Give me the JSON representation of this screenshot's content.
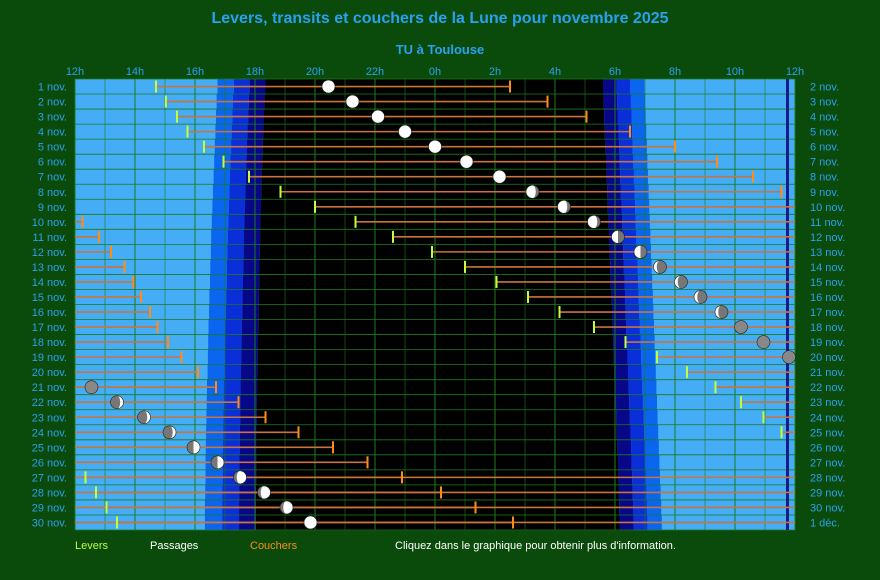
{
  "title": "Levers, transits et couchers de la Lune pour novembre 2025",
  "subtitle": "TU à Toulouse",
  "legend": {
    "rise": {
      "label": "Levers",
      "color": "#bfff3f"
    },
    "transit": {
      "label": "Passages",
      "color": "#ffffff"
    },
    "set": {
      "label": "Couchers",
      "color": "#ff8c1a"
    }
  },
  "hint": "Cliquez dans le graphique pour obtenir plus d'information.",
  "colors": {
    "background": "#0a4a0a",
    "day": "#45adf5",
    "twilight_civil": "#0a66ee",
    "twilight_nautical": "#0a2ed8",
    "twilight_astro": "#070788",
    "night": "#000000",
    "grid": "#1c7a1c",
    "label": "#2aa0f0",
    "bar": "#c8743a",
    "noon_line": "#1a1a88"
  },
  "chart_data": {
    "type": "gantt",
    "title": "Levers, transits et couchers de la Lune pour novembre 2025",
    "subtitle": "TU à Toulouse",
    "x_unit": "hours",
    "x_range": [
      12,
      36
    ],
    "x_ticks": [
      "12h",
      "14h",
      "16h",
      "18h",
      "20h",
      "22h",
      "0h",
      "2h",
      "4h",
      "6h",
      "8h",
      "10h",
      "12h"
    ],
    "rows_left": [
      "1 nov.",
      "2 nov.",
      "3 nov.",
      "4 nov.",
      "5 nov.",
      "6 nov.",
      "7 nov.",
      "8 nov.",
      "9 nov.",
      "10 nov.",
      "11 nov.",
      "12 nov.",
      "13 nov.",
      "14 nov.",
      "15 nov.",
      "16 nov.",
      "17 nov.",
      "18 nov.",
      "19 nov.",
      "20 nov.",
      "21 nov.",
      "22 nov.",
      "23 nov.",
      "24 nov.",
      "25 nov.",
      "26 nov.",
      "27 nov.",
      "28 nov.",
      "29 nov.",
      "30 nov."
    ],
    "rows_right": [
      "2 nov.",
      "3 nov.",
      "4 nov.",
      "5 nov.",
      "6 nov.",
      "7 nov.",
      "8 nov.",
      "9 nov.",
      "10 nov.",
      "11 nov.",
      "12 nov.",
      "13 nov.",
      "14 nov.",
      "15 nov.",
      "16 nov.",
      "17 nov.",
      "18 nov.",
      "19 nov.",
      "20 nov.",
      "21 nov.",
      "22 nov.",
      "23 nov.",
      "24 nov.",
      "25 nov.",
      "26 nov.",
      "27 nov.",
      "28 nov.",
      "29 nov.",
      "30 nov.",
      "1 déc."
    ],
    "sunset_start": [
      16.75,
      16.72,
      16.7,
      16.68,
      16.66,
      16.64,
      16.62,
      16.6,
      16.58,
      16.56,
      16.54,
      16.53,
      16.51,
      16.5,
      16.48,
      16.47,
      16.45,
      16.44,
      16.43,
      16.42,
      16.4,
      16.39,
      16.38,
      16.37,
      16.36,
      16.35,
      16.35,
      16.34,
      16.33,
      16.33
    ],
    "darkness_start": [
      18.35,
      18.32,
      18.3,
      18.28,
      18.26,
      18.24,
      18.22,
      18.21,
      18.2,
      18.18,
      18.17,
      18.16,
      18.15,
      18.14,
      18.13,
      18.12,
      18.11,
      18.1,
      18.09,
      18.08,
      18.07,
      18.06,
      18.06,
      18.05,
      18.05,
      18.04,
      18.04,
      18.03,
      18.03,
      18.03
    ],
    "darkness_end": [
      29.6,
      29.62,
      29.64,
      29.66,
      29.68,
      29.7,
      29.72,
      29.74,
      29.76,
      29.78,
      29.8,
      29.82,
      29.84,
      29.86,
      29.88,
      29.9,
      29.92,
      29.94,
      29.96,
      29.98,
      30.0,
      30.02,
      30.04,
      30.06,
      30.08,
      30.1,
      30.12,
      30.13,
      30.14,
      30.15
    ],
    "sunrise_end": [
      30.98,
      31.0,
      31.02,
      31.04,
      31.06,
      31.08,
      31.1,
      31.12,
      31.14,
      31.16,
      31.18,
      31.2,
      31.22,
      31.24,
      31.26,
      31.28,
      31.3,
      31.32,
      31.34,
      31.36,
      31.38,
      31.4,
      31.42,
      31.44,
      31.46,
      31.48,
      31.5,
      31.52,
      31.54,
      31.56
    ],
    "rise": [
      14.7,
      15.03,
      15.4,
      15.75,
      16.3,
      16.95,
      17.8,
      18.85,
      20.0,
      21.35,
      22.6,
      23.9,
      25.0,
      26.05,
      27.1,
      28.15,
      29.3,
      30.35,
      31.4,
      32.4,
      33.35,
      34.2,
      34.95,
      35.55,
      null,
      null,
      null,
      null,
      null,
      null
    ],
    "rise_same_day": [
      null,
      null,
      null,
      null,
      null,
      null,
      null,
      null,
      null,
      null,
      null,
      null,
      null,
      null,
      null,
      null,
      null,
      null,
      null,
      null,
      null,
      null,
      null,
      null,
      null,
      null,
      12.35,
      12.7,
      13.05,
      13.4
    ],
    "transit": [
      20.45,
      21.25,
      22.1,
      23.0,
      24.0,
      25.05,
      26.15,
      27.25,
      28.3,
      29.3,
      30.1,
      30.85,
      31.5,
      32.2,
      32.85,
      33.55,
      34.2,
      34.95,
      35.8,
      null,
      12.55,
      13.4,
      14.3,
      15.15,
      15.95,
      16.75,
      17.5,
      18.3,
      19.05,
      19.85
    ],
    "set": [
      26.5,
      27.75,
      29.05,
      30.5,
      32.0,
      33.4,
      34.6,
      35.55,
      null,
      12.25,
      12.8,
      13.2,
      13.65,
      13.95,
      14.2,
      14.5,
      14.75,
      15.1,
      15.55,
      16.1,
      16.7,
      17.45,
      18.35,
      19.45,
      20.6,
      21.75,
      22.9,
      24.2,
      25.35,
      26.6
    ],
    "set_next_day_after": null,
    "moon_phase": [
      "waxing",
      "waxing",
      "waxing",
      "full",
      "full",
      "full",
      "full",
      "waning-gibbous",
      "waning-gibbous",
      "waning-gibbous",
      "last-quarter",
      "last-quarter",
      "waning-crescent",
      "waning-crescent",
      "waning-crescent",
      "waning-crescent",
      "new",
      "new",
      "new",
      "new",
      "new",
      "waxing-crescent",
      "waxing-crescent",
      "waxing-crescent",
      "first-quarter",
      "first-quarter",
      "waxing-gibbous",
      "waxing-gibbous",
      "waxing-gibbous",
      "waxing"
    ]
  }
}
